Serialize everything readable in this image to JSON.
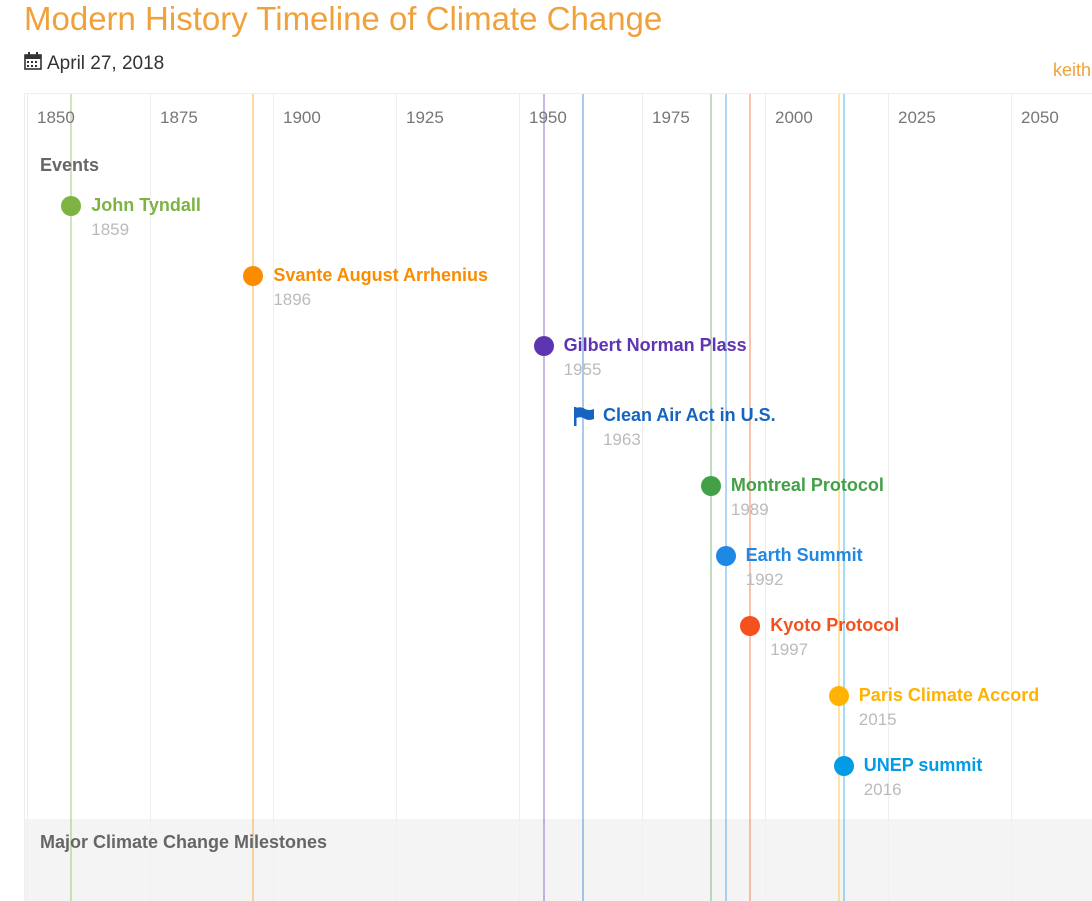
{
  "title": "Modern History Timeline of Climate Change",
  "date": "April 27, 2018",
  "author": "keith",
  "chart_data": {
    "type": "timeline",
    "x_ticks": [
      1850,
      1875,
      1900,
      1925,
      1950,
      1975,
      2000,
      2025,
      2050
    ],
    "lane_label": "Events",
    "band_label": "Major Climate Change Milestones",
    "events": [
      {
        "name": "John Tyndall",
        "year": "1859",
        "value": 1859,
        "color": "#7cb342",
        "icon": "dot"
      },
      {
        "name": "Svante August Arrhenius",
        "year": "1896",
        "value": 1896,
        "color": "#fb8c00",
        "icon": "dot"
      },
      {
        "name": "Gilbert Norman Plass",
        "year": "1955",
        "value": 1955,
        "color": "#5e35b1",
        "icon": "dot"
      },
      {
        "name": "Clean Air Act in U.S.",
        "year": "1963",
        "value": 1963,
        "color": "#1565c0",
        "icon": "flag"
      },
      {
        "name": "Montreal Protocol",
        "year": "1989",
        "value": 1989,
        "color": "#43a047",
        "icon": "dot"
      },
      {
        "name": "Earth Summit",
        "year": "1992",
        "value": 1992,
        "color": "#1e88e5",
        "icon": "dot"
      },
      {
        "name": "Kyoto Protocol",
        "year": "1997",
        "value": 1997,
        "color": "#f4511e",
        "icon": "dot"
      },
      {
        "name": "Paris Climate Accord",
        "year": "2015",
        "value": 2015,
        "color": "#ffb300",
        "icon": "dot"
      },
      {
        "name": "UNEP summit",
        "year": "2016",
        "value": 2016,
        "color": "#039be5",
        "icon": "dot"
      }
    ]
  }
}
